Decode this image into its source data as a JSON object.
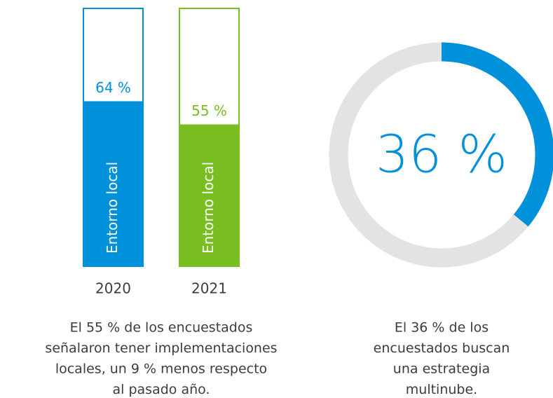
{
  "chart_data": [
    {
      "type": "bar",
      "categories": [
        "2020",
        "2021"
      ],
      "values": [
        64,
        55
      ],
      "value_labels": [
        "64 %",
        "55 %"
      ],
      "colors": [
        "#0091da",
        "#78be20"
      ],
      "bar_label": "Entorno local",
      "ylim": [
        0,
        100
      ],
      "caption": [
        "El 55 % de los encuestados",
        "señalaron tener implementaciones",
        "locales, un 9 % menos respecto",
        "al pasado año."
      ]
    },
    {
      "type": "donut",
      "value": 36,
      "value_label": "36 %",
      "color": "#0091da",
      "track_color": "#e3e3e3",
      "caption": [
        "El 36 % de los",
        "encuestados buscan",
        "una estrategia",
        "multinube."
      ]
    }
  ]
}
